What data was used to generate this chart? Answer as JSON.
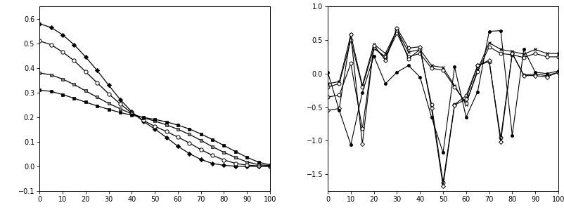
{
  "left_ylim": [
    -0.1,
    0.65
  ],
  "left_yticks": [
    -0.1,
    0.0,
    0.1,
    0.2,
    0.3,
    0.4,
    0.5,
    0.6
  ],
  "right_ylim": [
    -1.75,
    1.0
  ],
  "right_yticks": [
    -1.5,
    -1.0,
    -0.5,
    0.0,
    0.5,
    1.0
  ],
  "xticks": [
    0,
    10,
    20,
    30,
    40,
    50,
    60,
    70,
    80,
    90,
    100
  ],
  "figsize": [
    8.02,
    3.09
  ],
  "dpi": 100,
  "background": "#ffffff",
  "left_x": [
    0,
    5,
    10,
    15,
    20,
    25,
    30,
    35,
    40,
    45,
    50,
    55,
    60,
    65,
    70,
    75,
    80,
    85,
    90,
    95,
    100
  ],
  "left_strong": [
    0.58,
    0.565,
    0.535,
    0.495,
    0.445,
    0.39,
    0.33,
    0.272,
    0.222,
    0.183,
    0.152,
    0.118,
    0.082,
    0.052,
    0.028,
    0.012,
    0.004,
    0.001,
    0.0,
    0.0,
    0.0
  ],
  "left_isingb3": [
    0.51,
    0.495,
    0.465,
    0.43,
    0.385,
    0.34,
    0.295,
    0.254,
    0.217,
    0.187,
    0.163,
    0.142,
    0.119,
    0.095,
    0.068,
    0.045,
    0.026,
    0.012,
    0.005,
    0.002,
    0.001
  ],
  "left_isingb1": [
    0.38,
    0.372,
    0.355,
    0.333,
    0.307,
    0.281,
    0.256,
    0.234,
    0.214,
    0.198,
    0.184,
    0.169,
    0.151,
    0.13,
    0.106,
    0.08,
    0.057,
    0.036,
    0.018,
    0.007,
    0.003
  ],
  "left_isingb05": [
    0.31,
    0.305,
    0.292,
    0.277,
    0.261,
    0.246,
    0.232,
    0.219,
    0.208,
    0.199,
    0.191,
    0.181,
    0.168,
    0.152,
    0.132,
    0.109,
    0.085,
    0.06,
    0.037,
    0.017,
    0.006
  ],
  "right_x": [
    0,
    5,
    10,
    15,
    20,
    25,
    30,
    35,
    40,
    45,
    50,
    55,
    60,
    65,
    70,
    75,
    80,
    85,
    90,
    95,
    100
  ],
  "right_weak": [
    -0.15,
    -0.12,
    0.58,
    -0.18,
    0.44,
    0.3,
    0.65,
    0.32,
    0.36,
    0.12,
    0.09,
    -0.18,
    -0.46,
    0.06,
    0.46,
    0.36,
    0.33,
    0.29,
    0.36,
    0.3,
    0.3
  ],
  "right_isingb3": [
    -0.2,
    -0.15,
    0.5,
    -0.2,
    0.38,
    0.24,
    0.6,
    0.25,
    0.3,
    0.08,
    0.05,
    -0.2,
    -0.44,
    0.03,
    0.4,
    0.3,
    0.28,
    0.24,
    0.3,
    0.25,
    0.25
  ],
  "right_isingb1": [
    -0.35,
    -0.32,
    0.15,
    -0.82,
    0.38,
    0.25,
    0.65,
    0.22,
    0.36,
    -0.46,
    -1.62,
    -0.46,
    -0.33,
    0.12,
    0.18,
    -0.96,
    0.3,
    -0.02,
    -0.01,
    -0.03,
    0.02
  ],
  "right_isingb05": [
    -0.55,
    -0.52,
    0.58,
    -1.05,
    0.42,
    0.2,
    0.68,
    0.38,
    0.4,
    -0.52,
    -1.68,
    -0.47,
    -0.38,
    0.12,
    0.2,
    -1.02,
    0.3,
    -0.03,
    -0.03,
    -0.05,
    0.02
  ],
  "right_strong": [
    0.02,
    -0.55,
    -1.06,
    -0.28,
    0.26,
    -0.15,
    0.02,
    0.12,
    -0.05,
    -0.65,
    -1.18,
    0.1,
    -0.65,
    -0.27,
    0.63,
    0.64,
    -0.92,
    0.36,
    0.02,
    0.0,
    0.04
  ]
}
